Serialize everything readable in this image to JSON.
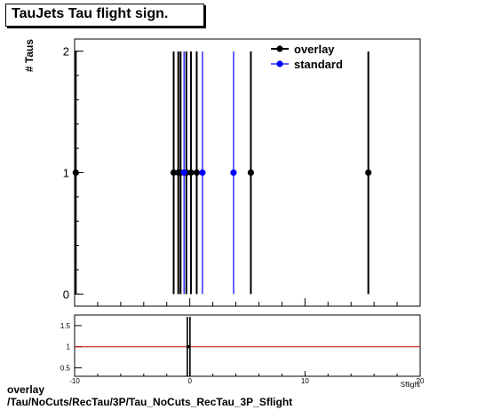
{
  "title": "TauJets Tau flight sign.",
  "footer": {
    "line1": "overlay",
    "line2": "/Tau/NoCuts/RecTau/3P/Tau_NoCuts_RecTau_3P_Sflight"
  },
  "colors": {
    "overlay": "#000000",
    "standard": "#0000ff",
    "ratio_line": "#cc0000"
  },
  "chart_data": [
    {
      "type": "scatter",
      "title": "TauJets Tau flight sign.",
      "ylabel": "# Taus",
      "xlim": [
        -10,
        20
      ],
      "ylim": [
        -0.1,
        2.1
      ],
      "yticks": [
        "0",
        "1",
        "2"
      ],
      "legend": "top-right",
      "series": [
        {
          "name": "overlay",
          "color": "#000000",
          "x": [
            -9.9,
            -1.4,
            -1.0,
            -0.8,
            -0.3,
            0.1,
            0.6,
            5.3,
            15.5
          ],
          "y": [
            1,
            1,
            1,
            1,
            1,
            1,
            1,
            1,
            1
          ],
          "err": [
            1,
            1,
            1,
            1,
            1,
            1,
            1,
            1,
            1
          ]
        },
        {
          "name": "standard",
          "color": "#0000ff",
          "x": [
            -0.5,
            1.1,
            3.8
          ],
          "y": [
            1,
            1,
            1
          ],
          "err": [
            1,
            1,
            1
          ]
        }
      ]
    },
    {
      "type": "line",
      "xlabel": "Sflight",
      "xlim": [
        -10,
        20
      ],
      "ylim": [
        0.3,
        1.75
      ],
      "xticks": [
        "-10",
        "0",
        "10",
        "20"
      ],
      "yticks": [
        "0.5",
        "1",
        "1.5"
      ],
      "reference_line": 1,
      "points": [
        {
          "x": -0.1,
          "y": 1,
          "err": 2
        }
      ]
    }
  ]
}
